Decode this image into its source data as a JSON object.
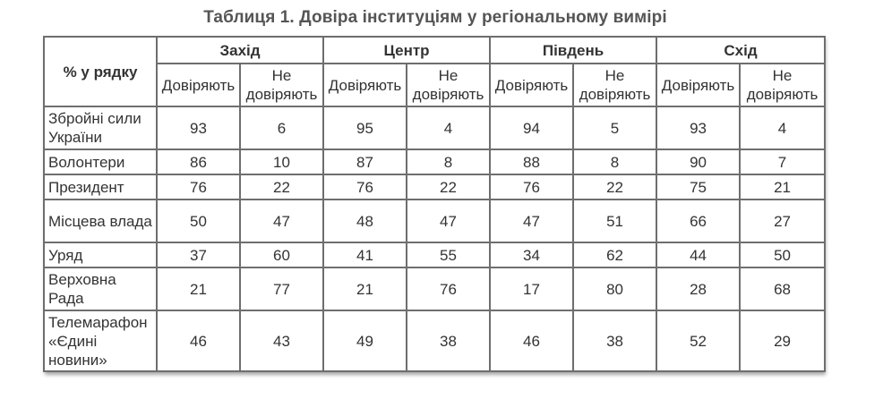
{
  "title": "Таблиця 1. Довіра інституціям у регіональному вимірі",
  "table": {
    "corner_label": "% у рядку",
    "regions": [
      "Захід",
      "Центр",
      "Південь",
      "Схід"
    ],
    "sub_trust": "Довіряють",
    "sub_distrust": "Не довіряють",
    "rows": [
      {
        "name": "Збройні сили України",
        "values": [
          "93",
          "6",
          "95",
          "4",
          "94",
          "5",
          "93",
          "4"
        ]
      },
      {
        "name": "Волонтери",
        "values": [
          "86",
          "10",
          "87",
          "8",
          "88",
          "8",
          "90",
          "7"
        ]
      },
      {
        "name": "Президент",
        "values": [
          "76",
          "22",
          "76",
          "22",
          "76",
          "22",
          "75",
          "21"
        ]
      },
      {
        "name": "Місцева влада",
        "values": [
          "50",
          "47",
          "48",
          "47",
          "47",
          "51",
          "66",
          "27"
        ]
      },
      {
        "name": "Уряд",
        "values": [
          "37",
          "60",
          "41",
          "55",
          "34",
          "62",
          "44",
          "50"
        ]
      },
      {
        "name": "Верховна Рада",
        "values": [
          "21",
          "77",
          "21",
          "76",
          "17",
          "80",
          "28",
          "68"
        ]
      },
      {
        "name": "Телемарафон «Єдині новини»",
        "values": [
          "46",
          "43",
          "49",
          "38",
          "46",
          "38",
          "52",
          "29"
        ]
      }
    ]
  }
}
